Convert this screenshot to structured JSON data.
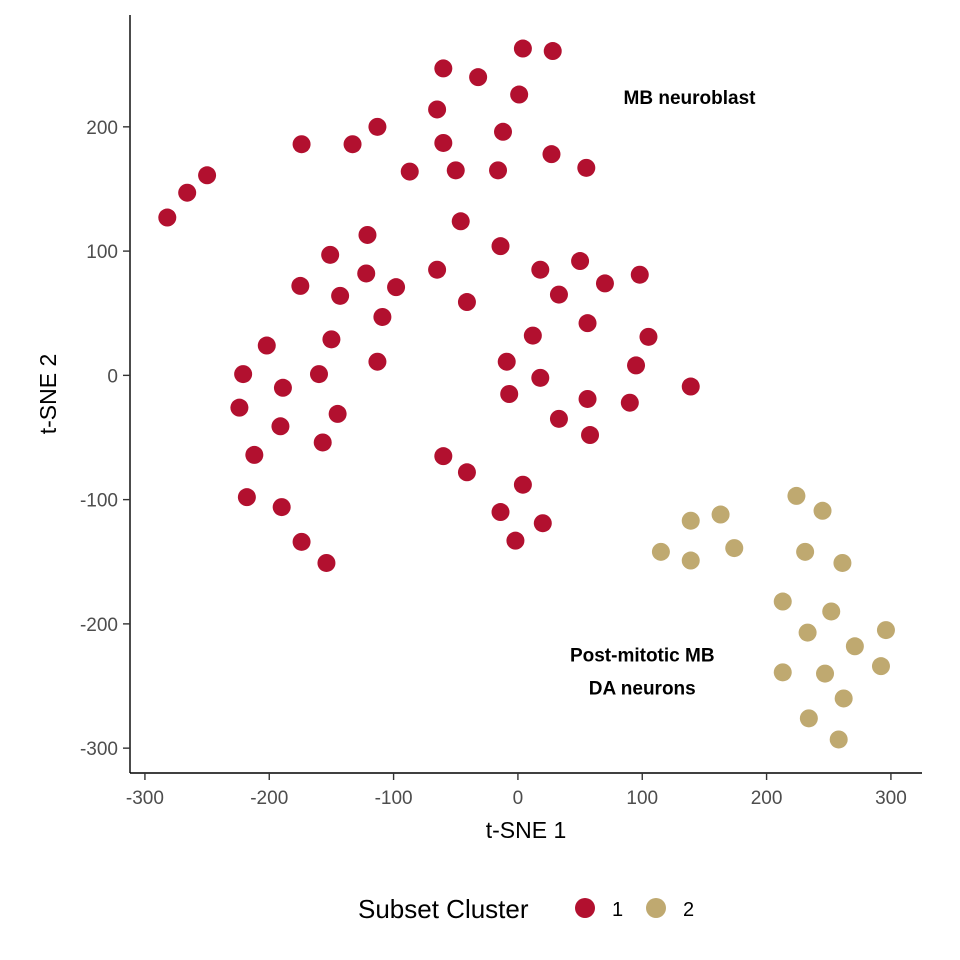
{
  "chart_data": {
    "type": "scatter",
    "xlabel": "t-SNE 1",
    "ylabel": "t-SNE 2",
    "xlim": [
      -312,
      325
    ],
    "ylim": [
      -320,
      290
    ],
    "xticks": [
      -300,
      -200,
      -100,
      0,
      100,
      200,
      300
    ],
    "yticks": [
      -300,
      -200,
      -100,
      0,
      100,
      200
    ],
    "grid": false,
    "legend": {
      "title": "Subset Cluster",
      "position": "bottom",
      "entries": [
        "1",
        "2"
      ]
    },
    "annotations": [
      {
        "lines": [
          "MB neuroblast"
        ],
        "x": 138,
        "y": 224
      },
      {
        "lines": [
          "Post-mitotic MB",
          "DA neurons"
        ],
        "x": 100,
        "y": -238
      }
    ],
    "series": [
      {
        "name": "1",
        "color": "#b2102f",
        "points": [
          [
            4,
            263
          ],
          [
            28,
            261
          ],
          [
            -60,
            247
          ],
          [
            -32,
            240
          ],
          [
            1,
            226
          ],
          [
            -65,
            214
          ],
          [
            -12,
            196
          ],
          [
            -113,
            200
          ],
          [
            -174,
            186
          ],
          [
            -133,
            186
          ],
          [
            -60,
            187
          ],
          [
            27,
            178
          ],
          [
            -87,
            164
          ],
          [
            -50,
            165
          ],
          [
            -16,
            165
          ],
          [
            55,
            167
          ],
          [
            -250,
            161
          ],
          [
            -266,
            147
          ],
          [
            -282,
            127
          ],
          [
            -46,
            124
          ],
          [
            -121,
            113
          ],
          [
            -14,
            104
          ],
          [
            -151,
            97
          ],
          [
            50,
            92
          ],
          [
            18,
            85
          ],
          [
            -65,
            85
          ],
          [
            -122,
            82
          ],
          [
            98,
            81
          ],
          [
            70,
            74
          ],
          [
            -175,
            72
          ],
          [
            -98,
            71
          ],
          [
            33,
            65
          ],
          [
            -143,
            64
          ],
          [
            -41,
            59
          ],
          [
            -109,
            47
          ],
          [
            56,
            42
          ],
          [
            -150,
            29
          ],
          [
            12,
            32
          ],
          [
            105,
            31
          ],
          [
            -202,
            24
          ],
          [
            -113,
            11
          ],
          [
            -9,
            11
          ],
          [
            95,
            8
          ],
          [
            -221,
            1
          ],
          [
            -160,
            1
          ],
          [
            18,
            -2
          ],
          [
            -189,
            -10
          ],
          [
            139,
            -9
          ],
          [
            -7,
            -15
          ],
          [
            56,
            -19
          ],
          [
            -224,
            -26
          ],
          [
            90,
            -22
          ],
          [
            -145,
            -31
          ],
          [
            33,
            -35
          ],
          [
            -191,
            -41
          ],
          [
            58,
            -48
          ],
          [
            -157,
            -54
          ],
          [
            -212,
            -64
          ],
          [
            -60,
            -65
          ],
          [
            -41,
            -78
          ],
          [
            4,
            -88
          ],
          [
            -218,
            -98
          ],
          [
            -190,
            -106
          ],
          [
            -14,
            -110
          ],
          [
            20,
            -119
          ],
          [
            -174,
            -134
          ],
          [
            -2,
            -133
          ],
          [
            -154,
            -151
          ]
        ]
      },
      {
        "name": "2",
        "color": "#bfa970",
        "points": [
          [
            224,
            -97
          ],
          [
            245,
            -109
          ],
          [
            139,
            -117
          ],
          [
            163,
            -112
          ],
          [
            115,
            -142
          ],
          [
            139,
            -149
          ],
          [
            174,
            -139
          ],
          [
            231,
            -142
          ],
          [
            261,
            -151
          ],
          [
            213,
            -182
          ],
          [
            252,
            -190
          ],
          [
            233,
            -207
          ],
          [
            296,
            -205
          ],
          [
            271,
            -218
          ],
          [
            213,
            -239
          ],
          [
            247,
            -240
          ],
          [
            292,
            -234
          ],
          [
            262,
            -260
          ],
          [
            234,
            -276
          ],
          [
            258,
            -293
          ]
        ]
      }
    ]
  }
}
